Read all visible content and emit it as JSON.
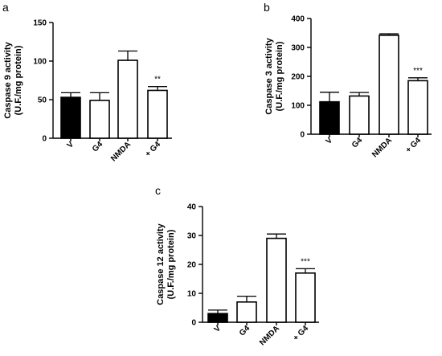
{
  "chart_data": [
    {
      "panel": "a",
      "type": "bar",
      "ylabel_line1": "Caspase 9 activity",
      "ylabel_line2": "(U.F./mg protein)",
      "categories": [
        "V",
        "G4",
        "NMDA",
        "+ G4"
      ],
      "values": [
        53,
        49,
        101,
        62
      ],
      "errors": [
        6,
        10,
        12,
        5
      ],
      "bar_colors": [
        "#000000",
        "#ffffff",
        "#ffffff",
        "#ffffff"
      ],
      "significance": [
        "",
        "",
        "",
        "**"
      ],
      "yticks": [
        0,
        50,
        100,
        150
      ],
      "ylim": [
        0,
        150
      ]
    },
    {
      "panel": "b",
      "type": "bar",
      "ylabel_line1": "Caspase 3 activity",
      "ylabel_line2": "(U.F./mg protein)",
      "categories": [
        "V",
        "G4",
        "NMDA",
        "+ G4"
      ],
      "values": [
        112,
        132,
        342,
        185
      ],
      "errors": [
        33,
        12,
        5,
        10
      ],
      "bar_colors": [
        "#000000",
        "#ffffff",
        "#ffffff",
        "#ffffff"
      ],
      "significance": [
        "",
        "",
        "",
        "***"
      ],
      "yticks": [
        0,
        100,
        200,
        300,
        400
      ],
      "ylim": [
        0,
        400
      ]
    },
    {
      "panel": "c",
      "type": "bar",
      "ylabel_line1": "Caspase 12 activity",
      "ylabel_line2": "(U.F./mg protein)",
      "categories": [
        "V",
        "G4",
        "NMDA",
        "+ G4"
      ],
      "values": [
        3,
        7,
        29,
        17
      ],
      "errors": [
        1.2,
        2,
        1.5,
        1.5
      ],
      "bar_colors": [
        "#000000",
        "#ffffff",
        "#ffffff",
        "#ffffff"
      ],
      "significance": [
        "",
        "",
        "",
        "***"
      ],
      "yticks": [
        0,
        10,
        20,
        30,
        40
      ],
      "ylim": [
        0,
        40
      ]
    }
  ]
}
